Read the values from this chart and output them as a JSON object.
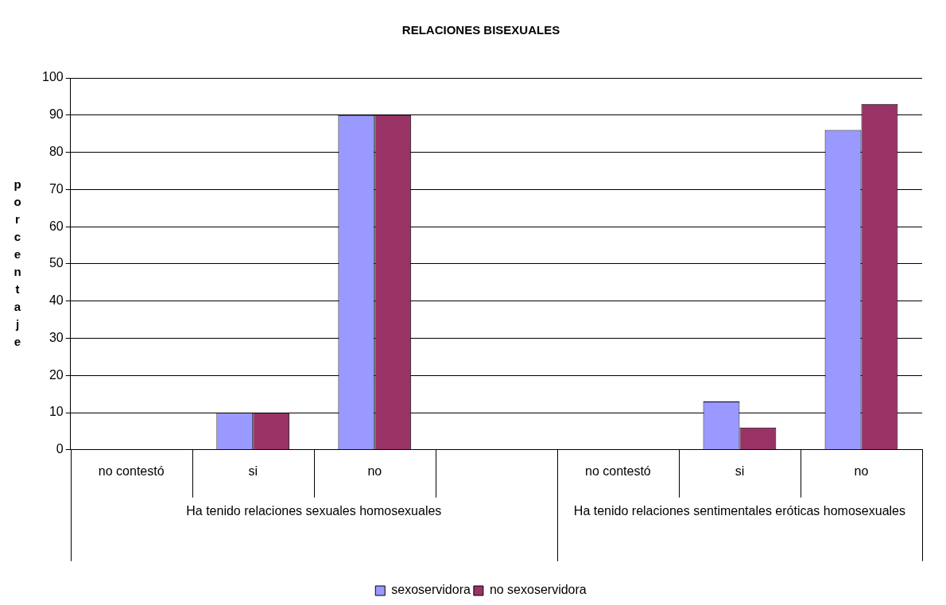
{
  "chart_data": {
    "type": "bar",
    "title": "RELACIONES BISEXUALES",
    "ylabel": "porcentaje",
    "categories": [
      "no contestó",
      "si",
      "no",
      null,
      "no contestó",
      "si",
      "no"
    ],
    "series": [
      {
        "name": "sexoservidora",
        "color": "#9999ff",
        "values": [
          0,
          10,
          90,
          0,
          0,
          13,
          86
        ]
      },
      {
        "name": "no sexoservidora",
        "color": "#993366",
        "values": [
          0,
          10,
          90,
          0,
          0,
          6,
          93
        ]
      }
    ],
    "ylim": [
      0,
      100
    ],
    "yticks": [
      0,
      10,
      20,
      30,
      40,
      50,
      60,
      70,
      80,
      90,
      100
    ],
    "grid": "y",
    "legend": "bottom",
    "annotations": [
      "Ha tenido relaciones sexuales homosexuales",
      "Ha tenido relaciones sentimentales eróticas homosexuales"
    ]
  }
}
